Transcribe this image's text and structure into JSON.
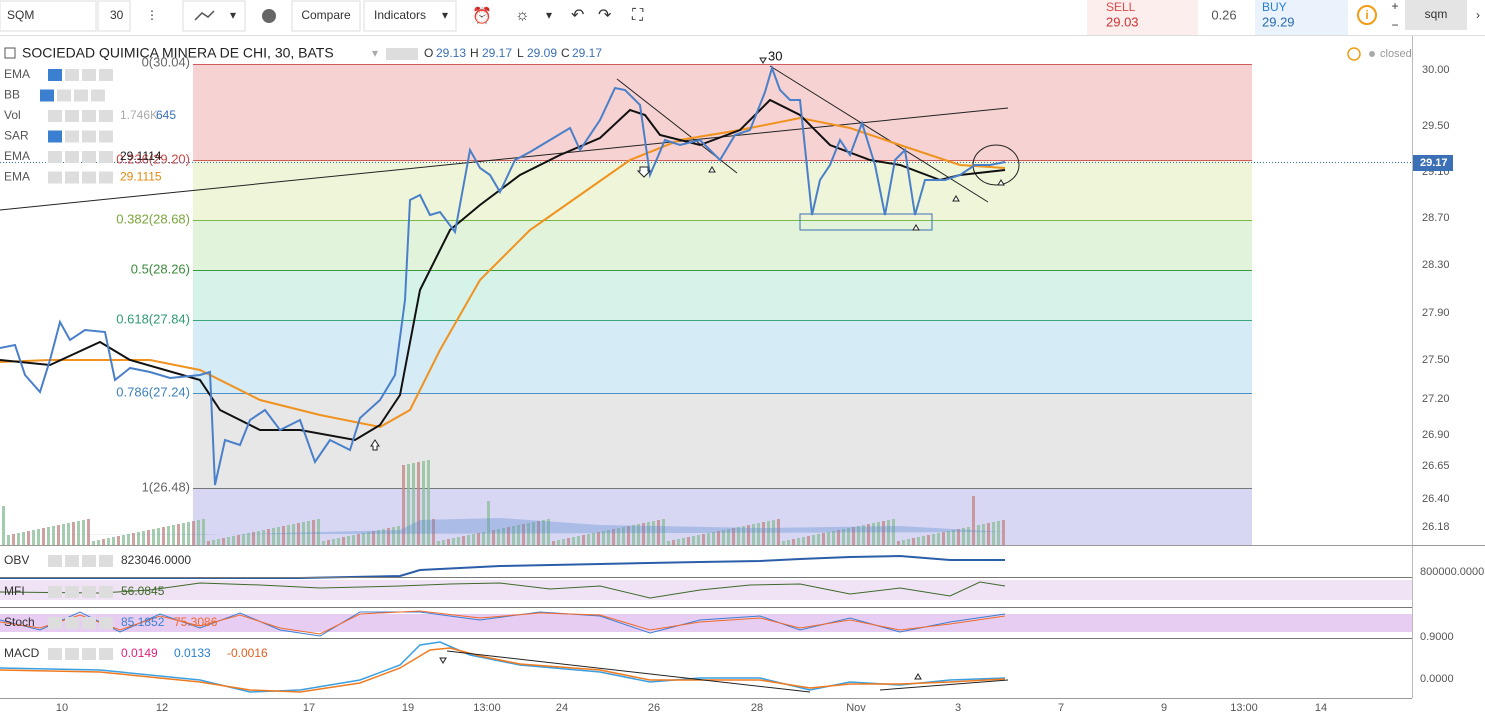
{
  "toolbar": {
    "symbol": "SQM",
    "interval": "30",
    "compare": "Compare",
    "indicators": "Indicators",
    "sell_label": "SELL",
    "sell_price": "29.03",
    "spread": "0.26",
    "buy_label": "BUY",
    "buy_price": "29.29",
    "tab": "sqm"
  },
  "legend": {
    "title": "SOCIEDAD QUIMICA MINERA DE CHI, 30, BATS",
    "ohlc": [
      {
        "label": "O",
        "value": "29.13"
      },
      {
        "label": "H",
        "value": "29.17"
      },
      {
        "label": "L",
        "value": "29.09"
      },
      {
        "label": "C",
        "value": "29.17"
      }
    ],
    "status": "closed",
    "indicators": [
      {
        "name": "EMA"
      },
      {
        "name": "BB"
      },
      {
        "name": "Vol",
        "values": [
          "1.746K",
          "645"
        ]
      },
      {
        "name": "SAR"
      },
      {
        "name": "EMA",
        "values": [
          "29.1114"
        ]
      },
      {
        "name": "EMA",
        "values": [
          "29.1115"
        ]
      }
    ]
  },
  "fib_levels": [
    "0(30.04)",
    "0.236(29.20)",
    "0.382(28.68)",
    "0.5(28.26)",
    "0.618(27.84)",
    "0.786(27.24)",
    "1(26.48)"
  ],
  "annotation": "30",
  "price_axis": [
    "30.00",
    "29.50",
    "29.10",
    "28.70",
    "28.30",
    "27.90",
    "27.50",
    "27.20",
    "26.90",
    "26.65",
    "26.40",
    "26.18"
  ],
  "last_price": "29.17",
  "panels": [
    {
      "name": "OBV",
      "values": [
        "823046.0000"
      ]
    },
    {
      "name": "MFI",
      "values": [
        "56.0845"
      ]
    },
    {
      "name": "Stoch",
      "values": [
        "85.1852",
        "75.3086"
      ]
    },
    {
      "name": "MACD",
      "values": [
        "0.0149",
        "0.0133",
        "-0.0016"
      ]
    }
  ],
  "panel_axis": [
    "800000.0000",
    "0.9000",
    "0.0000"
  ],
  "time_axis": [
    "10",
    "12",
    "17",
    "19",
    "13:00",
    "24",
    "26",
    "28",
    "Nov",
    "3",
    "7",
    "9",
    "13:00",
    "14"
  ]
}
